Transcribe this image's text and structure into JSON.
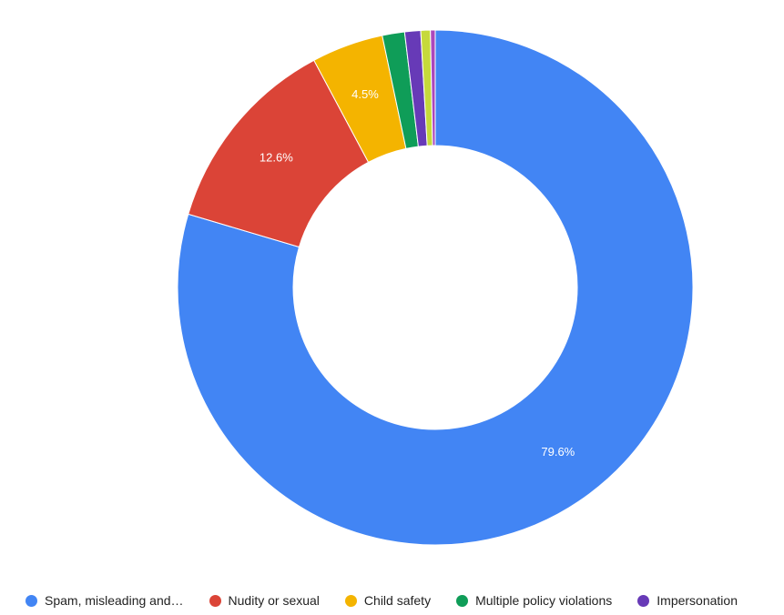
{
  "chart_data": {
    "type": "pie",
    "donut": true,
    "slices": [
      {
        "label": "Spam, misleading and…",
        "value": 79.6,
        "color": "#4285f4",
        "data_label": "79.6%"
      },
      {
        "label": "Nudity or sexual",
        "value": 12.6,
        "color": "#db4437",
        "data_label": "12.6%"
      },
      {
        "label": "Child safety",
        "value": 4.5,
        "color": "#f4b400",
        "data_label": "4.5%"
      },
      {
        "label": "Multiple policy violations",
        "value": 1.4,
        "color": "#0f9d58",
        "data_label": ""
      },
      {
        "label": "Impersonation",
        "value": 1.0,
        "color": "#673ab7",
        "data_label": ""
      },
      {
        "label": "",
        "value": 0.6,
        "color": "#c6d93b",
        "data_label": ""
      },
      {
        "label": "",
        "value": 0.3,
        "color": "#ab47bc",
        "data_label": ""
      }
    ],
    "legend_position": "bottom"
  }
}
